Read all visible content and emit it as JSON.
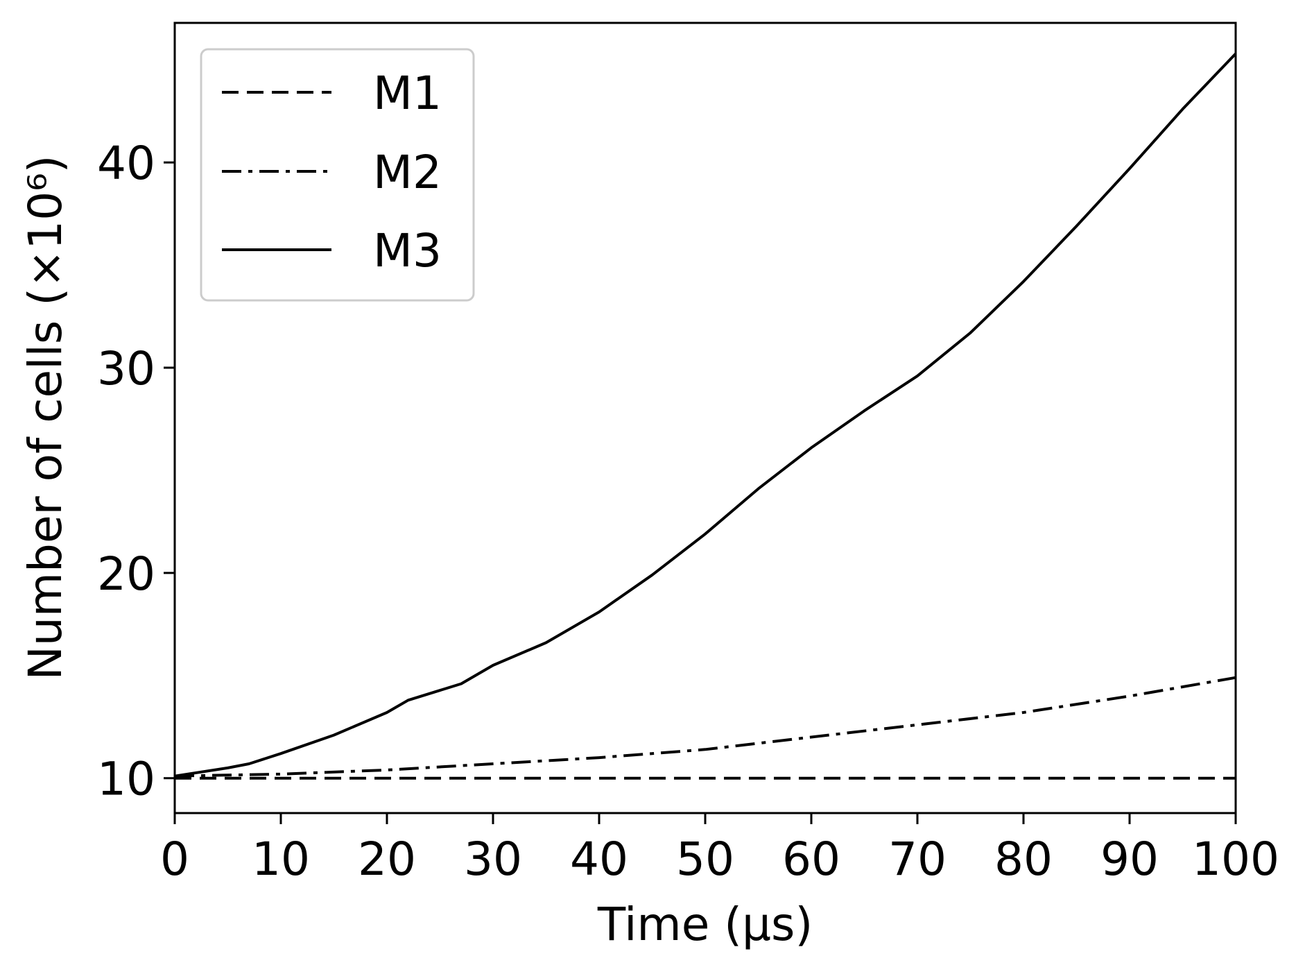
{
  "chart_data": {
    "type": "line",
    "title": "",
    "xlabel": "Time (μs)",
    "ylabel": "Number of cells (×10⁶)",
    "xlim": [
      0,
      100
    ],
    "ylim": [
      8.3,
      46.8
    ],
    "xticks": [
      0,
      10,
      20,
      30,
      40,
      50,
      60,
      70,
      80,
      90,
      100
    ],
    "xtick_labels": [
      "0",
      "10",
      "20",
      "30",
      "40",
      "50",
      "60",
      "70",
      "80",
      "90",
      "100"
    ],
    "yticks": [
      10,
      20,
      30,
      40
    ],
    "ytick_labels": [
      "10",
      "20",
      "30",
      "40"
    ],
    "legend_position": "top-left",
    "grid": false,
    "color": "#000000",
    "series": [
      {
        "name": "M1",
        "style": "dashed",
        "x": [
          0,
          10,
          20,
          30,
          40,
          50,
          60,
          70,
          80,
          90,
          100
        ],
        "y": [
          10,
          10,
          10,
          10,
          10,
          10,
          10,
          10,
          10,
          10,
          10
        ]
      },
      {
        "name": "M2",
        "style": "dashdot",
        "x": [
          0,
          10,
          20,
          30,
          40,
          50,
          60,
          70,
          80,
          90,
          100
        ],
        "y": [
          10.1,
          10.2,
          10.4,
          10.7,
          11.0,
          11.4,
          12.0,
          12.6,
          13.2,
          14.0,
          14.9
        ]
      },
      {
        "name": "M3",
        "style": "solid",
        "x": [
          0,
          5,
          7,
          10,
          15,
          20,
          22,
          27,
          30,
          35,
          40,
          45,
          50,
          55,
          60,
          65,
          70,
          75,
          80,
          85,
          90,
          95,
          100
        ],
        "y": [
          10.1,
          10.5,
          10.7,
          11.2,
          12.1,
          13.2,
          13.8,
          14.6,
          15.5,
          16.6,
          18.1,
          19.9,
          21.9,
          24.1,
          26.1,
          27.9,
          29.6,
          31.7,
          34.2,
          36.9,
          39.7,
          42.6,
          45.3
        ]
      }
    ]
  }
}
